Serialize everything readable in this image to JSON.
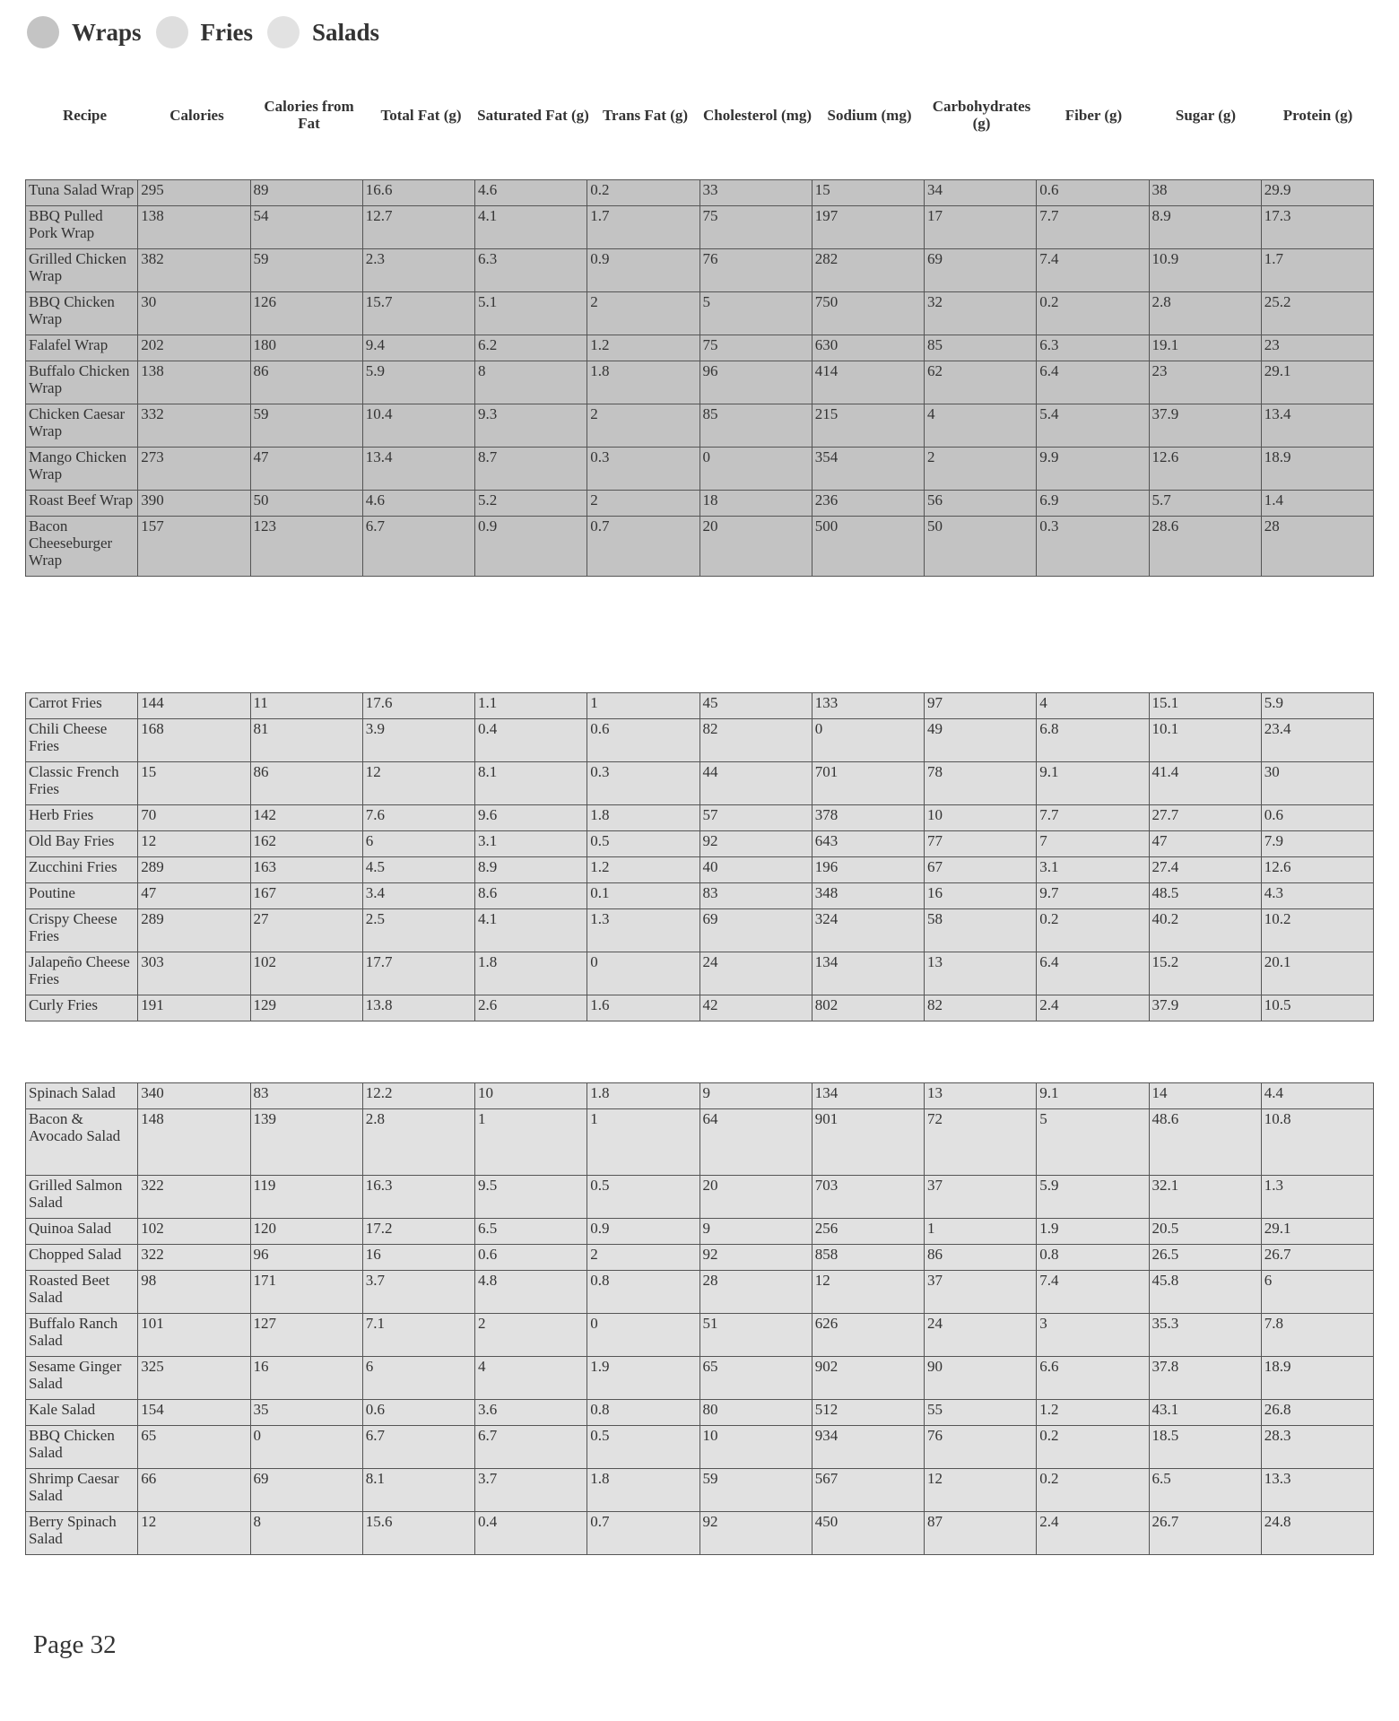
{
  "legend": [
    {
      "label": "Wraps",
      "color": "#c4c4c4"
    },
    {
      "label": "Fries",
      "color": "#dedede"
    },
    {
      "label": "Salads",
      "color": "#e2e2e2"
    }
  ],
  "columns": [
    "Recipe",
    "Calories",
    "Calories from Fat",
    "Total Fat (g)",
    "Saturated Fat (g)",
    "Trans Fat (g)",
    "Cholesterol (mg)",
    "Sodium (mg)",
    "Carbohydrates (g)",
    "Fiber (g)",
    "Sugar (g)",
    "Protein (g)"
  ],
  "tables": [
    {
      "name": "Wraps",
      "rows": [
        [
          "Tuna Salad Wrap",
          "295",
          "89",
          "16.6",
          "4.6",
          "0.2",
          "33",
          "15",
          "34",
          "0.6",
          "38",
          "29.9"
        ],
        [
          "BBQ Pulled Pork Wrap",
          "138",
          "54",
          "12.7",
          "4.1",
          "1.7",
          "75",
          "197",
          "17",
          "7.7",
          "8.9",
          "17.3"
        ],
        [
          "Grilled Chicken Wrap",
          "382",
          "59",
          "2.3",
          "6.3",
          "0.9",
          "76",
          "282",
          "69",
          "7.4",
          "10.9",
          "1.7"
        ],
        [
          "BBQ Chicken Wrap",
          "30",
          "126",
          "15.7",
          "5.1",
          "2",
          "5",
          "750",
          "32",
          "0.2",
          "2.8",
          "25.2"
        ],
        [
          "Falafel Wrap",
          "202",
          "180",
          "9.4",
          "6.2",
          "1.2",
          "75",
          "630",
          "85",
          "6.3",
          "19.1",
          "23"
        ],
        [
          "Buffalo Chicken Wrap",
          "138",
          "86",
          "5.9",
          "8",
          "1.8",
          "96",
          "414",
          "62",
          "6.4",
          "23",
          "29.1"
        ],
        [
          "Chicken Caesar Wrap",
          "332",
          "59",
          "10.4",
          "9.3",
          "2",
          "85",
          "215",
          "4",
          "5.4",
          "37.9",
          "13.4"
        ],
        [
          "Mango Chicken Wrap",
          "273",
          "47",
          "13.4",
          "8.7",
          "0.3",
          "0",
          "354",
          "2",
          "9.9",
          "12.6",
          "18.9"
        ],
        [
          "Roast Beef Wrap",
          "390",
          "50",
          "4.6",
          "5.2",
          "2",
          "18",
          "236",
          "56",
          "6.9",
          "5.7",
          "1.4"
        ],
        [
          "Bacon Cheeseburger Wrap",
          "157",
          "123",
          "6.7",
          "0.9",
          "0.7",
          "20",
          "500",
          "50",
          "0.3",
          "28.6",
          "28"
        ]
      ]
    },
    {
      "name": "Fries",
      "rows": [
        [
          "Carrot Fries",
          "144",
          "11",
          "17.6",
          "1.1",
          "1",
          "45",
          "133",
          "97",
          "4",
          "15.1",
          "5.9"
        ],
        [
          "Chili Cheese Fries",
          "168",
          "81",
          "3.9",
          "0.4",
          "0.6",
          "82",
          "0",
          "49",
          "6.8",
          "10.1",
          "23.4"
        ],
        [
          "Classic French Fries",
          "15",
          "86",
          "12",
          "8.1",
          "0.3",
          "44",
          "701",
          "78",
          "9.1",
          "41.4",
          "30"
        ],
        [
          "Herb Fries",
          "70",
          "142",
          "7.6",
          "9.6",
          "1.8",
          "57",
          "378",
          "10",
          "7.7",
          "27.7",
          "0.6"
        ],
        [
          "Old Bay Fries",
          "12",
          "162",
          "6",
          "3.1",
          "0.5",
          "92",
          "643",
          "77",
          "7",
          "47",
          "7.9"
        ],
        [
          "Zucchini Fries",
          "289",
          "163",
          "4.5",
          "8.9",
          "1.2",
          "40",
          "196",
          "67",
          "3.1",
          "27.4",
          "12.6"
        ],
        [
          "Poutine",
          "47",
          "167",
          "3.4",
          "8.6",
          "0.1",
          "83",
          "348",
          "16",
          "9.7",
          "48.5",
          "4.3"
        ],
        [
          "Crispy Cheese Fries",
          "289",
          "27",
          "2.5",
          "4.1",
          "1.3",
          "69",
          "324",
          "58",
          "0.2",
          "40.2",
          "10.2"
        ],
        [
          "Jalapeño Cheese Fries",
          "303",
          "102",
          "17.7",
          "1.8",
          "0",
          "24",
          "134",
          "13",
          "6.4",
          "15.2",
          "20.1"
        ],
        [
          "Curly Fries",
          "191",
          "129",
          "13.8",
          "2.6",
          "1.6",
          "42",
          "802",
          "82",
          "2.4",
          "37.9",
          "10.5"
        ]
      ]
    },
    {
      "name": "Salads",
      "rows": [
        [
          "Spinach Salad",
          "340",
          "83",
          "12.2",
          "10",
          "1.8",
          "9",
          "134",
          "13",
          "9.1",
          "14",
          "4.4"
        ],
        [
          "Bacon & Avocado Salad",
          "148",
          "139",
          "2.8",
          "1",
          "1",
          "64",
          "901",
          "72",
          "5",
          "48.6",
          "10.8"
        ],
        [
          "Grilled Salmon Salad",
          "322",
          "119",
          "16.3",
          "9.5",
          "0.5",
          "20",
          "703",
          "37",
          "5.9",
          "32.1",
          "1.3"
        ],
        [
          "Quinoa Salad",
          "102",
          "120",
          "17.2",
          "6.5",
          "0.9",
          "9",
          "256",
          "1",
          "1.9",
          "20.5",
          "29.1"
        ],
        [
          "Chopped Salad",
          "322",
          "96",
          "16",
          "0.6",
          "2",
          "92",
          "858",
          "86",
          "0.8",
          "26.5",
          "26.7"
        ],
        [
          "Roasted Beet Salad",
          "98",
          "171",
          "3.7",
          "4.8",
          "0.8",
          "28",
          "12",
          "37",
          "7.4",
          "45.8",
          "6"
        ],
        [
          "Buffalo Ranch Salad",
          "101",
          "127",
          "7.1",
          "2",
          "0",
          "51",
          "626",
          "24",
          "3",
          "35.3",
          "7.8"
        ],
        [
          "Sesame Ginger Salad",
          "325",
          "16",
          "6",
          "4",
          "1.9",
          "65",
          "902",
          "90",
          "6.6",
          "37.8",
          "18.9"
        ],
        [
          "Kale Salad",
          "154",
          "35",
          "0.6",
          "3.6",
          "0.8",
          "80",
          "512",
          "55",
          "1.2",
          "43.1",
          "26.8"
        ],
        [
          "BBQ Chicken Salad",
          "65",
          "0",
          "6.7",
          "6.7",
          "0.5",
          "10",
          "934",
          "76",
          "0.2",
          "18.5",
          "28.3"
        ],
        [
          "Shrimp Caesar Salad",
          "66",
          "69",
          "8.1",
          "3.7",
          "1.8",
          "59",
          "567",
          "12",
          "0.2",
          "6.5",
          "13.3"
        ],
        [
          "Berry Spinach Salad",
          "12",
          "8",
          "15.6",
          "0.4",
          "0.7",
          "92",
          "450",
          "87",
          "2.4",
          "26.7",
          "24.8"
        ]
      ]
    }
  ],
  "footer": {
    "page_label": "Page 32"
  }
}
